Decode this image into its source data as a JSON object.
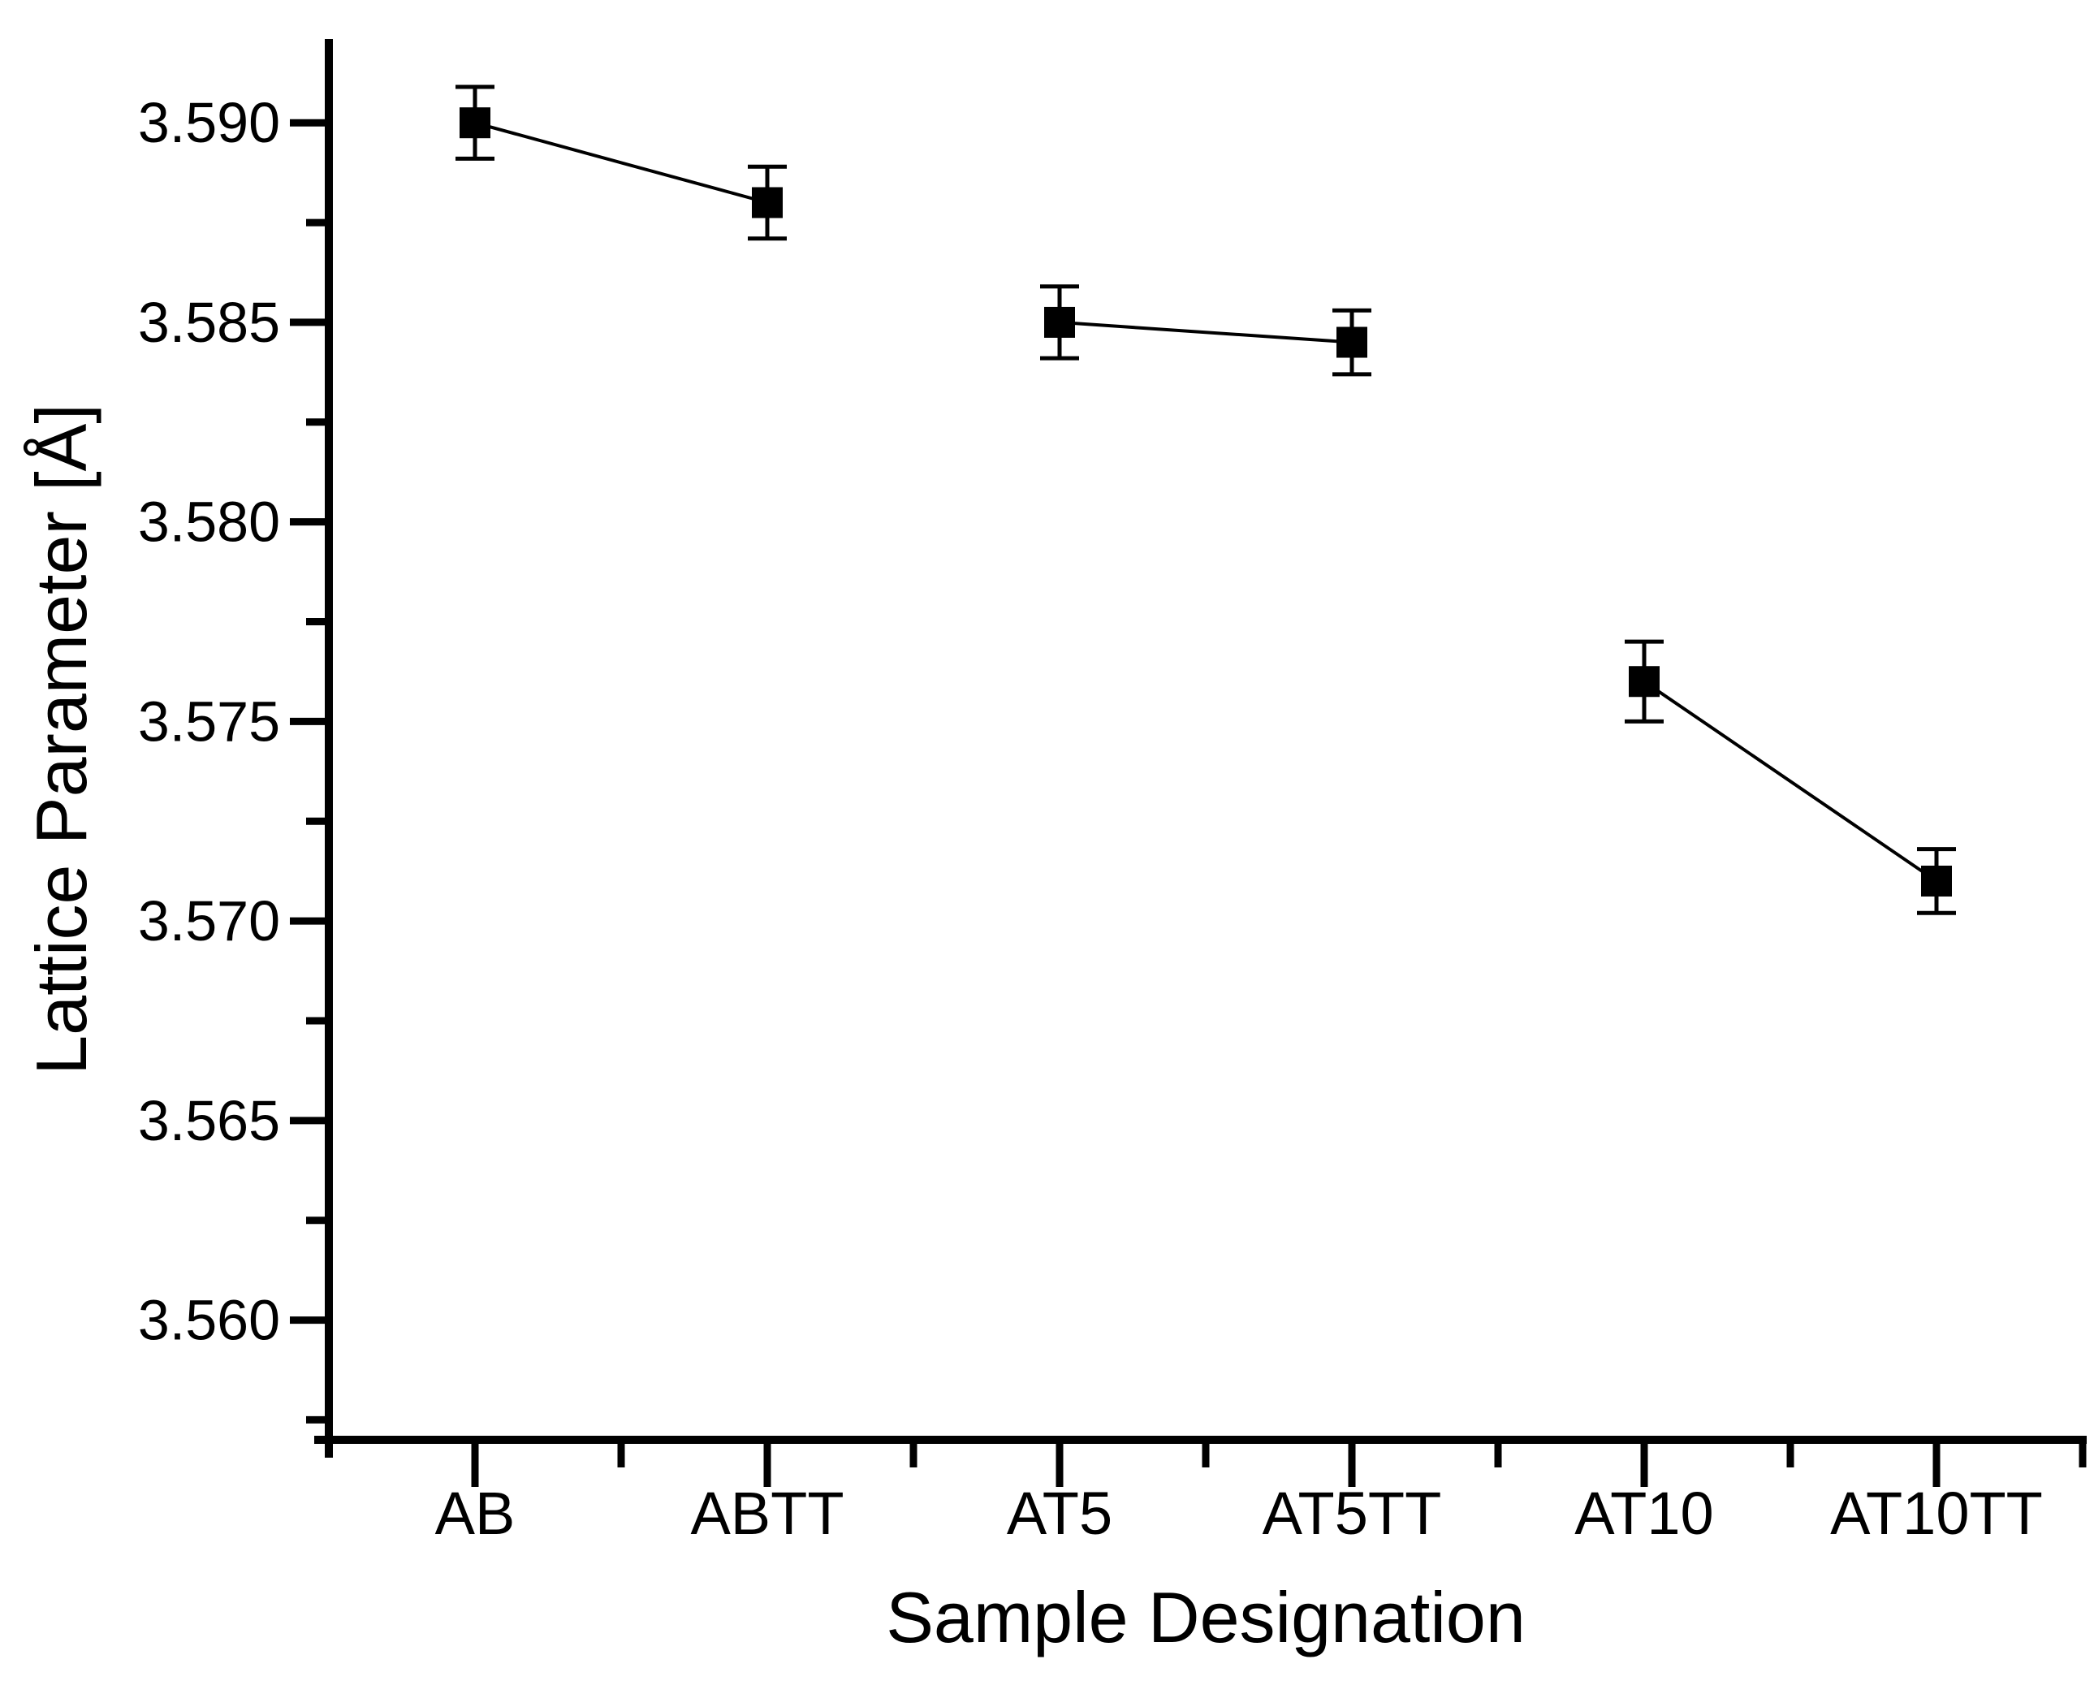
{
  "chart_data": {
    "type": "scatter",
    "title": "",
    "xlabel": "Sample Designation",
    "ylabel": "Lattice Parameter [Å]",
    "categories": [
      "AB",
      "ABTT",
      "AT5",
      "AT5TT",
      "AT10",
      "AT10TT"
    ],
    "series": [
      {
        "name": "lattice-parameter",
        "values": [
          3.59,
          3.588,
          3.585,
          3.5845,
          3.576,
          3.571
        ],
        "errors": [
          0.0009,
          0.0009,
          0.0009,
          0.0008,
          0.001,
          0.0008
        ]
      }
    ],
    "connected_pairs": [
      [
        0,
        1
      ],
      [
        2,
        3
      ],
      [
        4,
        5
      ]
    ],
    "ylim": [
      3.557,
      3.5921
    ],
    "yticks": {
      "major_values": [
        3.59,
        3.585,
        3.58,
        3.575,
        3.57,
        3.565,
        3.56
      ],
      "major_labels": [
        "3.590",
        "3.585",
        "3.580",
        "3.575",
        "3.570",
        "3.565",
        "3.560"
      ],
      "minor_values": [
        3.5875,
        3.5825,
        3.5775,
        3.5725,
        3.5675,
        3.5625,
        3.5575
      ]
    },
    "grid": false,
    "legend": "none",
    "marker": "filled-square",
    "colors": {
      "foreground": "#000000",
      "background": "#ffffff"
    }
  }
}
